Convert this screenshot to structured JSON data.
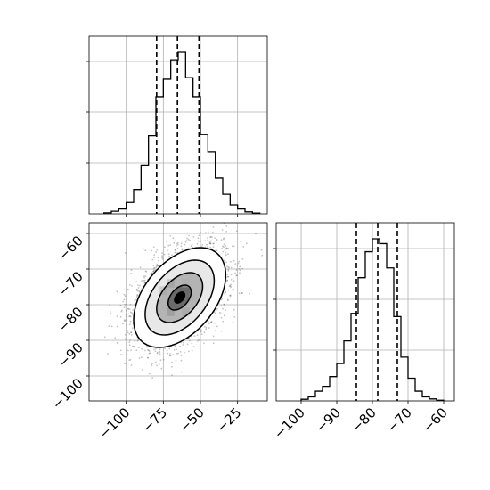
{
  "chart_data": [
    {
      "panel": "marginal histogram, parameter 1 (top-left)",
      "type": "histogram",
      "x_range": [
        -125,
        -5
      ],
      "bins_x": [
        -115,
        -110,
        -105,
        -100,
        -95,
        -90,
        -85,
        -80,
        -75,
        -70,
        -65,
        -60,
        -55,
        -50,
        -45,
        -40,
        -35,
        -30,
        -25,
        -20,
        -15,
        -10
      ],
      "counts": [
        0.006,
        0.016,
        0.03,
        0.07,
        0.15,
        0.3,
        0.48,
        0.72,
        0.83,
        0.95,
        1.0,
        0.84,
        0.72,
        0.49,
        0.38,
        0.22,
        0.12,
        0.055,
        0.03,
        0.012,
        0.005
      ],
      "quantile_lines": [
        -79.5,
        -65.5,
        -51
      ],
      "y_ticks_shown": 3,
      "y_tick_labels_shown": false,
      "grid": true
    },
    {
      "panel": "joint density, parameter 1 vs parameter 2 (bottom-left)",
      "type": "contour",
      "x_range": [
        -125,
        -5
      ],
      "y_range": [
        -107,
        -57
      ],
      "x_ticks": [
        -100,
        -75,
        -50,
        -25
      ],
      "x_tick_labels": [
        "−100",
        "−75",
        "−50",
        "−25"
      ],
      "y_ticks": [
        -60,
        -70,
        -80,
        -90,
        -100
      ],
      "y_tick_labels": [
        "−60",
        "−70",
        "−80",
        "−90",
        "−100"
      ],
      "center": [
        -64,
        -78
      ],
      "spread": [
        15.5,
        7
      ],
      "correlation": 0.45,
      "contour_levels_sigma": [
        0.5,
        1,
        1.5,
        2
      ],
      "grid": true
    },
    {
      "panel": "marginal histogram, parameter 2 (bottom-right)",
      "type": "histogram",
      "x_range": [
        -107,
        -57
      ],
      "bins_x": [
        -100,
        -98,
        -96,
        -94,
        -92,
        -90,
        -88,
        -86,
        -84,
        -82,
        -80,
        -78,
        -76,
        -74,
        -72,
        -70,
        -68,
        -66,
        -64,
        -62,
        -60
      ],
      "counts": [
        0.01,
        0.025,
        0.06,
        0.09,
        0.15,
        0.23,
        0.37,
        0.54,
        0.76,
        0.92,
        1.0,
        0.97,
        0.82,
        0.52,
        0.27,
        0.14,
        0.06,
        0.025,
        0.012,
        0.004
      ],
      "quantile_lines": [
        -84.5,
        -78.5,
        -73
      ],
      "x_ticks": [
        -100,
        -90,
        -80,
        -70,
        -60
      ],
      "x_tick_labels": [
        "−100",
        "−90",
        "−80",
        "−70",
        "−60"
      ],
      "y_ticks_shown": 3,
      "y_tick_labels_shown": false,
      "grid": true
    }
  ]
}
